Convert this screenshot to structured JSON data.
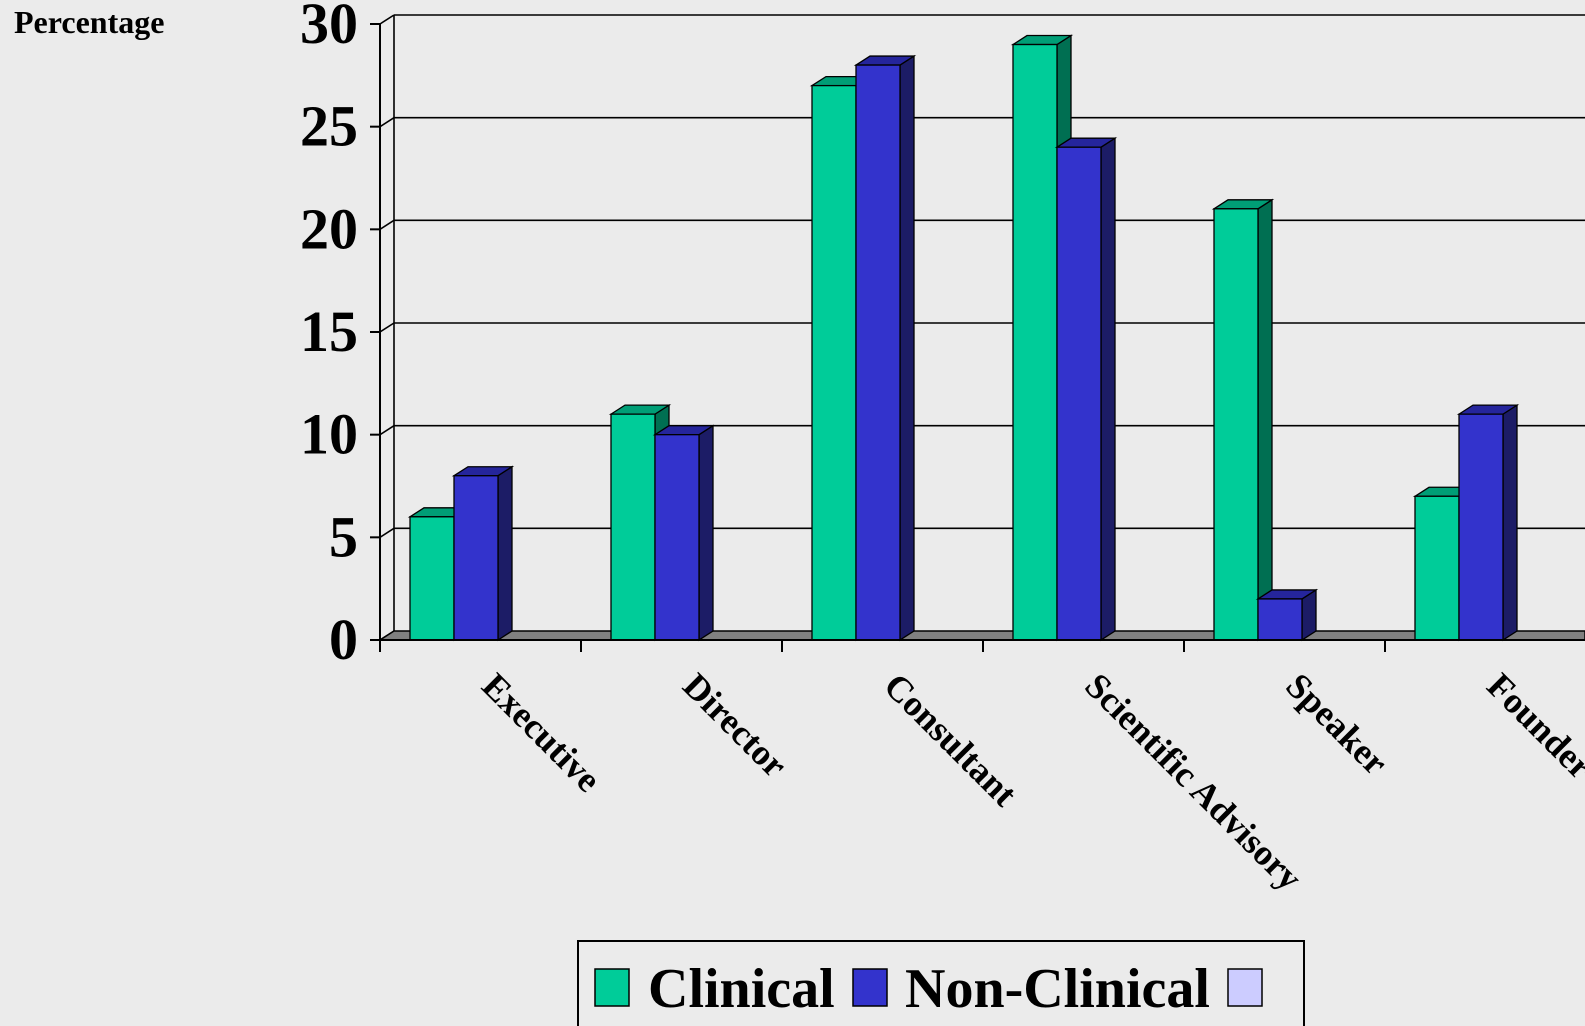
{
  "chart_data": {
    "type": "bar",
    "ylabel": "Percentage",
    "ylim": [
      0,
      30
    ],
    "yticks": [
      "0",
      "5",
      "10",
      "15",
      "20",
      "25",
      "30"
    ],
    "categories": [
      "Executive",
      "Director",
      "Consultant",
      "Scientific Advisory",
      "Speaker",
      "Founder"
    ],
    "series": [
      {
        "name": "Clinical",
        "values": [
          6,
          11,
          27,
          29,
          21,
          7
        ],
        "color": "#00cc99",
        "side_color": "#006f52",
        "top_color": "#009e76"
      },
      {
        "name": "Non-Clinical",
        "values": [
          8,
          10,
          28,
          24,
          2,
          11
        ],
        "color": "#3333cc",
        "side_color": "#1c1c66",
        "top_color": "#25259c"
      }
    ],
    "legend": {
      "position": "bottom",
      "entries": [
        "Clinical",
        "Non-Clinical",
        ""
      ],
      "extra_swatch_color": "#ccccff"
    },
    "grid": true,
    "style": "3d-columns",
    "floor_color": "#808080"
  }
}
